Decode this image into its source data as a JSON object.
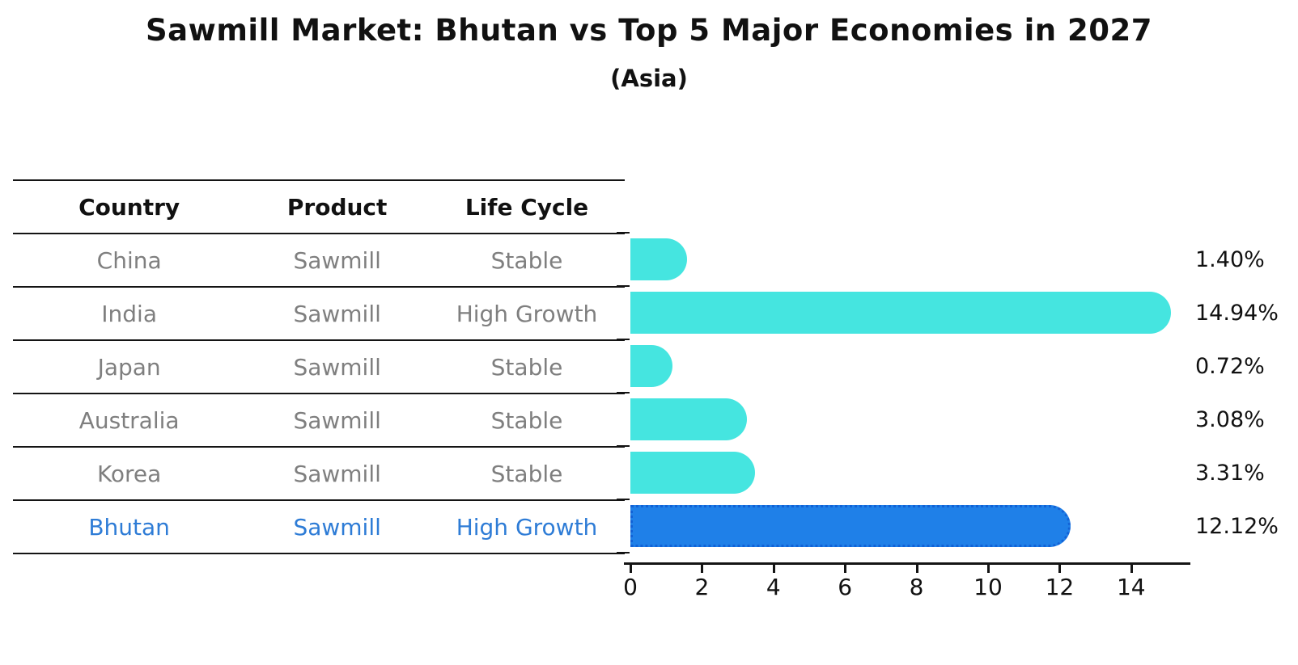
{
  "title": "Sawmill Market: Bhutan vs Top 5 Major Economies in 2027",
  "subtitle": "(Asia)",
  "table": {
    "headers": [
      "Country",
      "Product",
      "Life Cycle"
    ],
    "rows": [
      {
        "country": "China",
        "product": "Sawmill",
        "life_cycle": "Stable",
        "highlighted": false
      },
      {
        "country": "India",
        "product": "Sawmill",
        "life_cycle": "High Growth",
        "highlighted": false
      },
      {
        "country": "Japan",
        "product": "Sawmill",
        "life_cycle": "Stable",
        "highlighted": false
      },
      {
        "country": "Australia",
        "product": "Sawmill",
        "life_cycle": "Stable",
        "highlighted": false
      },
      {
        "country": "Korea",
        "product": "Sawmill",
        "life_cycle": "Stable",
        "highlighted": false
      },
      {
        "country": "Bhutan",
        "product": "Sawmill",
        "life_cycle": "High Growth",
        "highlighted": true
      }
    ]
  },
  "chart_data": {
    "type": "bar",
    "orientation": "horizontal",
    "categories": [
      "China",
      "India",
      "Japan",
      "Australia",
      "Korea",
      "Bhutan"
    ],
    "values": [
      1.4,
      14.94,
      0.72,
      3.08,
      3.31,
      12.12
    ],
    "value_labels": [
      "1.40%",
      "14.94%",
      "0.72%",
      "3.08%",
      "3.31%",
      "12.12%"
    ],
    "highlight_category": "Bhutan",
    "xlim": [
      0,
      15.5
    ],
    "x_ticks": [
      "0",
      "2",
      "4",
      "6",
      "8",
      "10",
      "12",
      "14"
    ],
    "grid": false,
    "legend": false,
    "bar_color": "#45e5e0",
    "highlight_bar_color": "#1f80e8",
    "highlight_text_color": "#2e7cd6",
    "label_color": "#111111",
    "muted_text_color": "#7f7f7f"
  }
}
